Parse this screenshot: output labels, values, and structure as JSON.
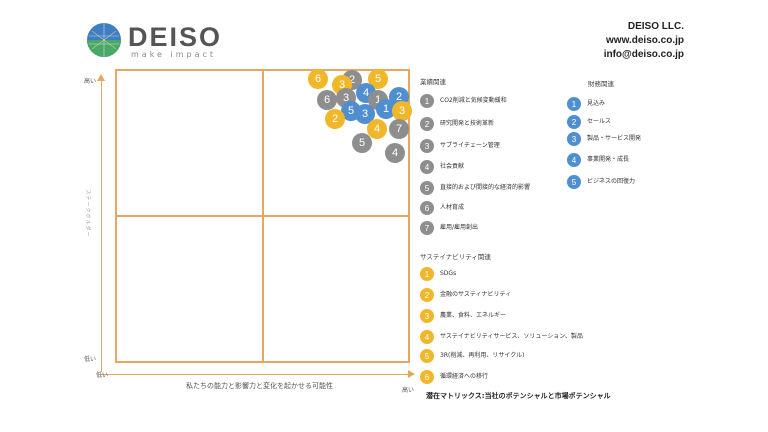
{
  "header": {
    "logo_word": "DEISO",
    "logo_tagline": "make impact",
    "company_name": "DEISO LLC.",
    "website": "www.deiso.co.jp",
    "email": "info@deiso.co.jp"
  },
  "axes": {
    "y_high": "高い",
    "y_low": "低い",
    "y_title": "ステークホルダー",
    "x_low": "低い",
    "x_high": "高い",
    "x_title": "私たちの能力と影響力と変化を起かせる可能性"
  },
  "colors": {
    "accent": "#e8a75f",
    "yellow": "#f0b72a",
    "blue": "#4f8fd0",
    "grey": "#8e8e8e"
  },
  "bubbles": [
    {
      "label": "6",
      "color": "yellow"
    },
    {
      "label": "2",
      "color": "grey"
    },
    {
      "label": "3",
      "color": "yellow"
    },
    {
      "label": "5",
      "color": "yellow"
    },
    {
      "label": "6",
      "color": "grey"
    },
    {
      "label": "3",
      "color": "grey"
    },
    {
      "label": "4",
      "color": "blue"
    },
    {
      "label": "1",
      "color": "grey"
    },
    {
      "label": "2",
      "color": "blue"
    },
    {
      "label": "5",
      "color": "blue"
    },
    {
      "label": "3",
      "color": "blue"
    },
    {
      "label": "1",
      "color": "blue"
    },
    {
      "label": "3",
      "color": "yellow"
    },
    {
      "label": "2",
      "color": "yellow"
    },
    {
      "label": "4",
      "color": "yellow"
    },
    {
      "label": "7",
      "color": "grey"
    },
    {
      "label": "5",
      "color": "grey"
    },
    {
      "label": "4",
      "color": "grey"
    }
  ],
  "legend_env": {
    "title": "業績関連",
    "items": [
      {
        "num": "1",
        "text": "CO2削減と気候変動緩和"
      },
      {
        "num": "2",
        "text": "研究開発と技術革新"
      },
      {
        "num": "3",
        "text": "サプライチェーン管理"
      },
      {
        "num": "4",
        "text": "社会貢献"
      },
      {
        "num": "5",
        "text": "直接的および間接的な経済的影響"
      },
      {
        "num": "6",
        "text": "人材育成"
      },
      {
        "num": "7",
        "text": "雇用/雇用創出"
      }
    ]
  },
  "legend_fin": {
    "title": "財務関連",
    "items": [
      {
        "num": "1",
        "text": "見込み"
      },
      {
        "num": "2",
        "text": "セールス"
      },
      {
        "num": "3",
        "text": "製品・サービス開発"
      },
      {
        "num": "4",
        "text": "事業開発・成長"
      },
      {
        "num": "5",
        "text": "ビジネスの回復力"
      }
    ]
  },
  "legend_sus": {
    "title": "サステイナビリティ関連",
    "items": [
      {
        "num": "1",
        "text": "SDGs"
      },
      {
        "num": "2",
        "text": "金融のサスティナビリティ"
      },
      {
        "num": "3",
        "text": "農業、食料、エネルギー"
      },
      {
        "num": "4",
        "text": "サステイナビリティサービス、ソリューション、製品"
      },
      {
        "num": "5",
        "text": "3R(削減、再利用、リサイクル)"
      },
      {
        "num": "6",
        "text": "循環経済への移行"
      }
    ]
  },
  "footer_title": "潜在マトリックス:当社のポテンシャルと市場ポテンシャル"
}
